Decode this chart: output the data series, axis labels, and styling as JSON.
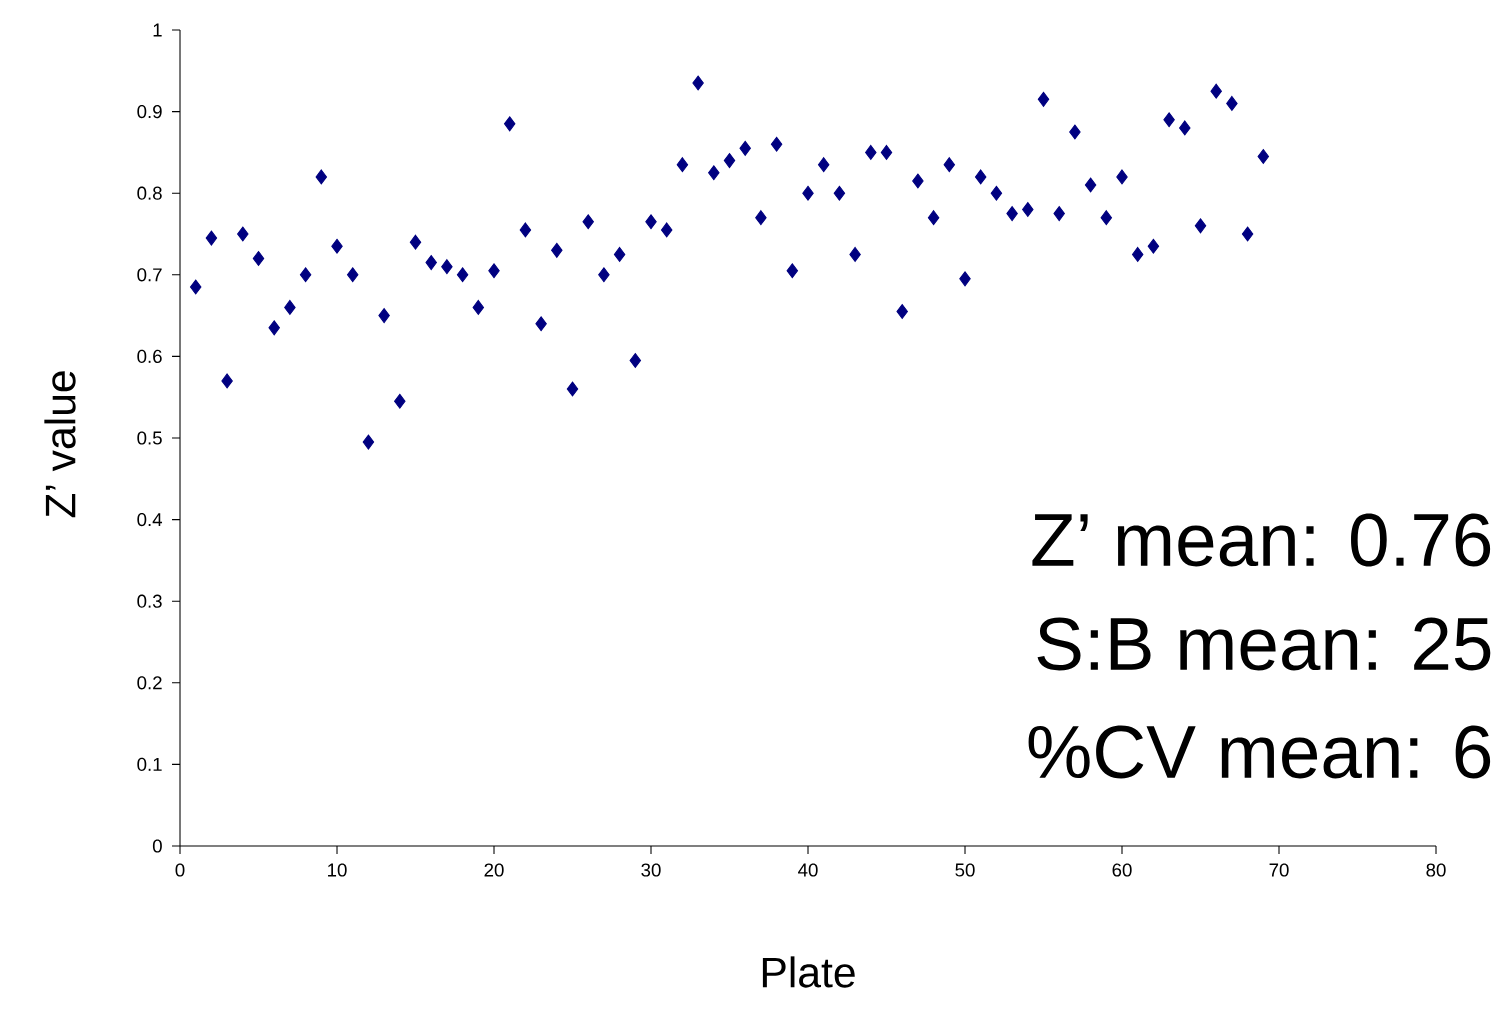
{
  "chart_data": {
    "type": "scatter",
    "xlabel": "Plate",
    "ylabel": "Z’ value",
    "x": [
      1,
      2,
      3,
      4,
      5,
      6,
      7,
      8,
      9,
      10,
      11,
      12,
      13,
      14,
      15,
      16,
      17,
      18,
      19,
      20,
      21,
      22,
      23,
      24,
      25,
      26,
      27,
      28,
      29,
      30,
      31,
      32,
      33,
      34,
      35,
      36,
      37,
      38,
      39,
      40,
      41,
      42,
      43,
      44,
      45,
      46,
      47,
      48,
      49,
      50,
      51,
      52,
      53,
      54,
      55,
      56,
      57,
      58,
      59,
      60,
      61,
      62,
      63,
      64,
      65,
      66,
      67,
      68,
      69
    ],
    "values": [
      0.685,
      0.745,
      0.57,
      0.75,
      0.72,
      0.635,
      0.66,
      0.7,
      0.82,
      0.735,
      0.7,
      0.495,
      0.65,
      0.545,
      0.74,
      0.715,
      0.71,
      0.7,
      0.66,
      0.705,
      0.885,
      0.755,
      0.64,
      0.73,
      0.56,
      0.765,
      0.7,
      0.725,
      0.595,
      0.765,
      0.755,
      0.835,
      0.935,
      0.825,
      0.84,
      0.855,
      0.77,
      0.86,
      0.705,
      0.8,
      0.835,
      0.8,
      0.725,
      0.85,
      0.85,
      0.655,
      0.815,
      0.77,
      0.835,
      0.695,
      0.82,
      0.8,
      0.775,
      0.78,
      0.915,
      0.775,
      0.875,
      0.81,
      0.77,
      0.82,
      0.725,
      0.735,
      0.89,
      0.88,
      0.76,
      0.925,
      0.91,
      0.75,
      0.845
    ],
    "color": "#000080",
    "marker": "diamond",
    "grid": false,
    "xlim": [
      0,
      80
    ],
    "xticks": [
      0,
      10,
      20,
      30,
      40,
      50,
      60,
      70,
      80
    ],
    "ylim": [
      0,
      1
    ],
    "yticks": [
      0,
      0.1,
      0.2,
      0.3,
      0.4,
      0.5,
      0.6,
      0.7,
      0.8,
      0.9,
      1
    ],
    "annotations": [
      "Z’ mean: 0.76",
      "S:B mean: 25",
      "%CV mean: 6"
    ]
  }
}
